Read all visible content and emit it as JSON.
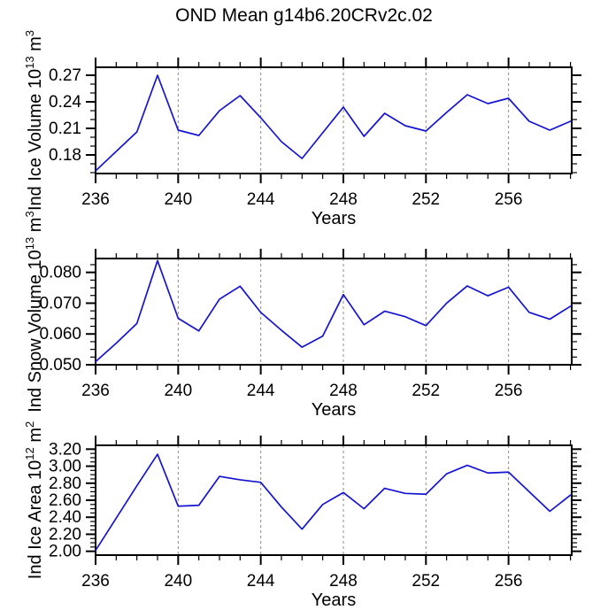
{
  "title": "OND Mean g14b6.20CRv2c.02",
  "colors": {
    "line": "#1414d2",
    "grid": "#8c8c8c",
    "axis": "#000000",
    "text": "#000000",
    "background": "#ffffff"
  },
  "chart_data": [
    {
      "type": "line",
      "id": "ice-volume",
      "ylabel": {
        "base": "Ind Ice Volume 10",
        "base_exp": "13",
        "unit": " m",
        "unit_exp": "3"
      },
      "xlabel": "Years",
      "x": [
        236,
        237,
        238,
        239,
        240,
        241,
        242,
        243,
        244,
        245,
        246,
        247,
        248,
        249,
        250,
        251,
        252,
        253,
        254,
        255,
        256,
        257,
        258,
        259
      ],
      "values": [
        0.162,
        0.184,
        0.206,
        0.27,
        0.208,
        0.202,
        0.23,
        0.247,
        0.222,
        0.195,
        0.176,
        0.205,
        0.234,
        0.201,
        0.227,
        0.213,
        0.207,
        0.228,
        0.248,
        0.238,
        0.244,
        0.218,
        0.208,
        0.218
      ],
      "xlim": [
        236,
        259.06
      ],
      "ylim": [
        0.159,
        0.279
      ],
      "xticks": [
        236,
        240,
        244,
        248,
        252,
        256
      ],
      "xtick_labels": [
        "236",
        "240",
        "244",
        "248",
        "252",
        "256"
      ],
      "x_minor_step": 1,
      "yticks": [
        0.18,
        0.21,
        0.24,
        0.27
      ],
      "ytick_labels": [
        "0.18",
        "0.21",
        "0.24",
        "0.27"
      ],
      "y_minor_step": 0.01,
      "grid_x": [
        240,
        244,
        248,
        252,
        256
      ],
      "grid": "vertical-dashed",
      "legend": "none"
    },
    {
      "type": "line",
      "id": "snow-volume",
      "ylabel": {
        "base": "Ind Snow Volume 10",
        "base_exp": "13",
        "unit": " m",
        "unit_exp": "3"
      },
      "xlabel": "Years",
      "x": [
        236,
        237,
        238,
        239,
        240,
        241,
        242,
        243,
        244,
        245,
        246,
        247,
        248,
        249,
        250,
        251,
        252,
        253,
        254,
        255,
        256,
        257,
        258,
        259
      ],
      "values": [
        0.051,
        0.057,
        0.0634,
        0.0838,
        0.0651,
        0.061,
        0.0713,
        0.0755,
        0.067,
        0.0612,
        0.0557,
        0.0593,
        0.0728,
        0.063,
        0.0674,
        0.0656,
        0.0627,
        0.07,
        0.0756,
        0.0724,
        0.0752,
        0.067,
        0.0648,
        0.069
      ],
      "xlim": [
        236,
        259.06
      ],
      "ylim": [
        0.05,
        0.0845
      ],
      "xticks": [
        236,
        240,
        244,
        248,
        252,
        256
      ],
      "xtick_labels": [
        "236",
        "240",
        "244",
        "248",
        "252",
        "256"
      ],
      "x_minor_step": 1,
      "yticks": [
        0.05,
        0.06,
        0.07,
        0.08
      ],
      "ytick_labels": [
        "0.050",
        "0.060",
        "0.070",
        "0.080"
      ],
      "y_minor_step": 0.0025,
      "grid_x": [
        240,
        244,
        248,
        252,
        256
      ],
      "grid": "vertical-dashed",
      "legend": "none"
    },
    {
      "type": "line",
      "id": "ice-area",
      "ylabel": {
        "base": "Ind Ice Area 10",
        "base_exp": "12",
        "unit": " m",
        "unit_exp": "2"
      },
      "xlabel": "Years",
      "x": [
        236,
        237,
        238,
        239,
        240,
        241,
        242,
        243,
        244,
        245,
        246,
        247,
        248,
        249,
        250,
        251,
        252,
        253,
        254,
        255,
        256,
        257,
        258,
        259
      ],
      "values": [
        2.01,
        2.39,
        2.77,
        3.14,
        2.53,
        2.54,
        2.88,
        2.84,
        2.81,
        2.52,
        2.26,
        2.55,
        2.69,
        2.5,
        2.74,
        2.68,
        2.67,
        2.91,
        3.01,
        2.92,
        2.93,
        2.7,
        2.47,
        2.66
      ],
      "xlim": [
        236,
        259.06
      ],
      "ylim": [
        1.955,
        3.245
      ],
      "xticks": [
        236,
        240,
        244,
        248,
        252,
        256
      ],
      "xtick_labels": [
        "236",
        "240",
        "244",
        "248",
        "252",
        "256"
      ],
      "x_minor_step": 1,
      "yticks": [
        2.0,
        2.2,
        2.4,
        2.6,
        2.8,
        3.0,
        3.2
      ],
      "ytick_labels": [
        "2.00",
        "2.20",
        "2.40",
        "2.60",
        "2.80",
        "3.00",
        "3.20"
      ],
      "y_minor_step": 0.05,
      "grid_x": [
        240,
        244,
        248,
        252,
        256
      ],
      "grid": "vertical-dashed",
      "legend": "none"
    }
  ]
}
